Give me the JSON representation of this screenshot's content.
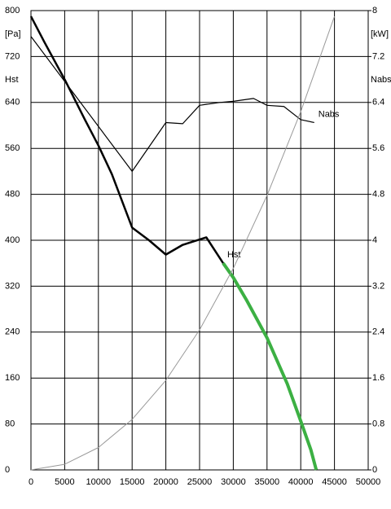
{
  "chart_data": {
    "type": "line",
    "y_label_unit": "[Pa]",
    "y_label": "Hst",
    "y2_label_unit": "[kW]",
    "y2_label": "Nabs",
    "xlim": [
      0,
      50000
    ],
    "xticks": [
      0,
      5000,
      10000,
      15000,
      20000,
      25000,
      30000,
      35000,
      40000,
      45000,
      50000
    ],
    "ylim": [
      0,
      800
    ],
    "yticks": [
      0,
      80,
      160,
      240,
      320,
      400,
      480,
      560,
      640,
      720,
      800
    ],
    "y2lim": [
      0,
      8
    ],
    "y2ticks": [
      0,
      0.8,
      1.6,
      2.4,
      3.2,
      4,
      4.8,
      5.6,
      6.4,
      7.2,
      8
    ],
    "grid": true,
    "series": [
      {
        "name": "Hst",
        "color": "#000000",
        "width": 2.5,
        "x": [
          0,
          2000,
          5000,
          8000,
          10000,
          12000,
          15000,
          17500,
          20000,
          22500,
          26000,
          28500
        ],
        "values": [
          790,
          745,
          680,
          610,
          565,
          515,
          422,
          400,
          375,
          392,
          405,
          360
        ]
      },
      {
        "color": "#3cb043",
        "width": 4,
        "x": [
          28500,
          30000,
          32000,
          35000,
          38000,
          40000,
          41500,
          42300
        ],
        "values": [
          360,
          335,
          295,
          230,
          150,
          85,
          35,
          0
        ]
      },
      {
        "name": "Nabs",
        "color": "#000000",
        "width": 1.2,
        "axis": "y2",
        "x": [
          0,
          15000,
          20000,
          22500,
          25000,
          28000,
          30000,
          33000,
          35000,
          37500,
          40000,
          42000
        ],
        "values": [
          7.55,
          5.2,
          6.05,
          6.03,
          6.35,
          6.4,
          6.42,
          6.47,
          6.35,
          6.33,
          6.1,
          6.05
        ]
      },
      {
        "color": "#999999",
        "width": 1,
        "x": [
          0,
          5000,
          10000,
          15000,
          20000,
          25000,
          30000,
          35000,
          40000,
          45000
        ],
        "values": [
          0,
          9.8,
          39,
          88,
          156,
          244,
          351,
          478,
          624,
          790
        ]
      }
    ]
  }
}
